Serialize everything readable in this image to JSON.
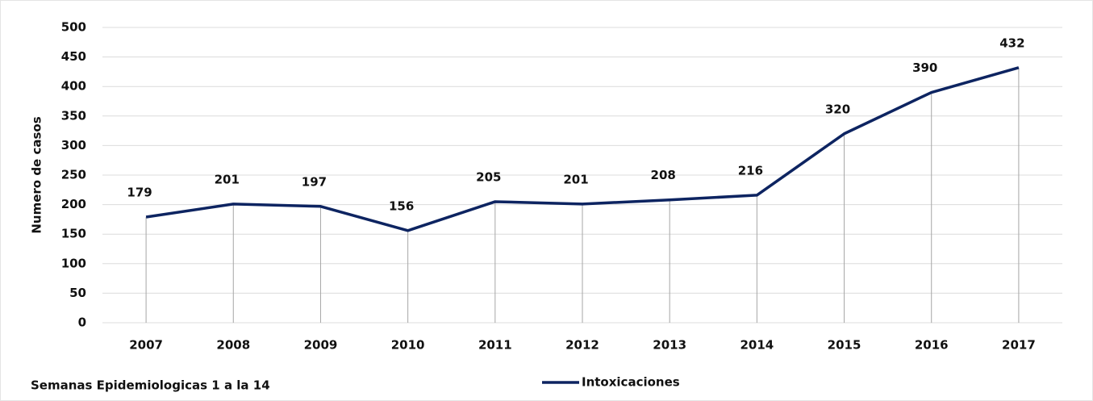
{
  "chart_data": {
    "type": "line",
    "y_label": "Numero de casos",
    "annotation": "Semanas Epidemiologicas 1 a la 14",
    "categories": [
      "2007",
      "2008",
      "2009",
      "2010",
      "2011",
      "2012",
      "2013",
      "2014",
      "2015",
      "2016",
      "2017"
    ],
    "series": [
      {
        "name": "Intoxicaciones",
        "color": "#0d2461",
        "values": [
          179,
          201,
          197,
          156,
          205,
          201,
          208,
          216,
          320,
          390,
          432
        ]
      }
    ],
    "ylim": [
      0,
      500
    ],
    "yticks": [
      0,
      50,
      100,
      150,
      200,
      250,
      300,
      350,
      400,
      450,
      500
    ],
    "grid": true,
    "drop_lines": true,
    "legend": "bottom"
  }
}
